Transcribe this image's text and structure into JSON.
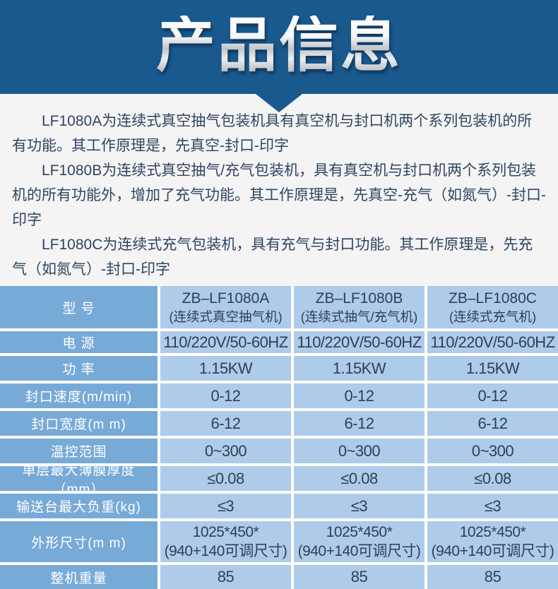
{
  "banner": {
    "title": "产品信息"
  },
  "colors": {
    "banner_blue": "#19598e",
    "page_bg": "#f4f4f4",
    "label_cell_blue": "#78aad8",
    "value_cell_blue": "#aecbe9",
    "value_text": "#2d4156"
  },
  "intro": {
    "paragraphs": [
      "LF1080A为连续式真空抽气包装机具有真空机与封口机两个系列包装机的所有功能。其工作原理是，先真空-封口-印字",
      "LF1080B为连续式真空抽气/充气包装机，具有真空机与封口机两个系列包装机的所有功能外，增加了充气功能。其工作原理是，先真空-充气（如氮气）-封口-印字",
      "LF1080C为连续式充气包装机，具有充气与封口功能。其工作原理是，先充气（如氮气）-封口-印字"
    ]
  },
  "table": {
    "header": {
      "label": "型 号",
      "cols": [
        {
          "name": "ZB–LF1080A",
          "sub": "(连续式真空抽气机)"
        },
        {
          "name": "ZB–LF1080B",
          "sub": "(连续式抽气/充气机)"
        },
        {
          "name": "ZB–LF1080C",
          "sub": "(连续式充气机)"
        }
      ]
    },
    "rows": [
      {
        "label": "电 源",
        "values": [
          "110/220V/50-60HZ",
          "110/220V/50-60HZ",
          "110/220V/50-60HZ"
        ]
      },
      {
        "label": "功 率",
        "values": [
          "1.15KW",
          "1.15KW",
          "1.15KW"
        ]
      },
      {
        "label": "封口速度(m/min)",
        "values": [
          "0-12",
          "0-12",
          "0-12"
        ]
      },
      {
        "label": "封口宽度(m m)",
        "values": [
          "6-12",
          "6-12",
          "6-12"
        ]
      },
      {
        "label": "温控范围",
        "values": [
          "0~300",
          "0~300",
          "0~300"
        ]
      },
      {
        "label": "单层最大薄膜厚度（mm）",
        "values": [
          "≤0.08",
          "≤0.08",
          "≤0.08"
        ]
      },
      {
        "label": "输送台最大负重(kg)",
        "values": [
          "≤3",
          "≤3",
          "≤3"
        ]
      },
      {
        "label": "外形尺寸(m m)",
        "line1": [
          "1025*450*",
          "1025*450*",
          "1025*450*"
        ],
        "line2": [
          "(940+140可调尺寸)",
          "(940+140可调尺寸)",
          "(940+140可调尺寸)"
        ]
      },
      {
        "label": "整机重量",
        "values": [
          "85",
          "85",
          "85"
        ]
      }
    ]
  }
}
